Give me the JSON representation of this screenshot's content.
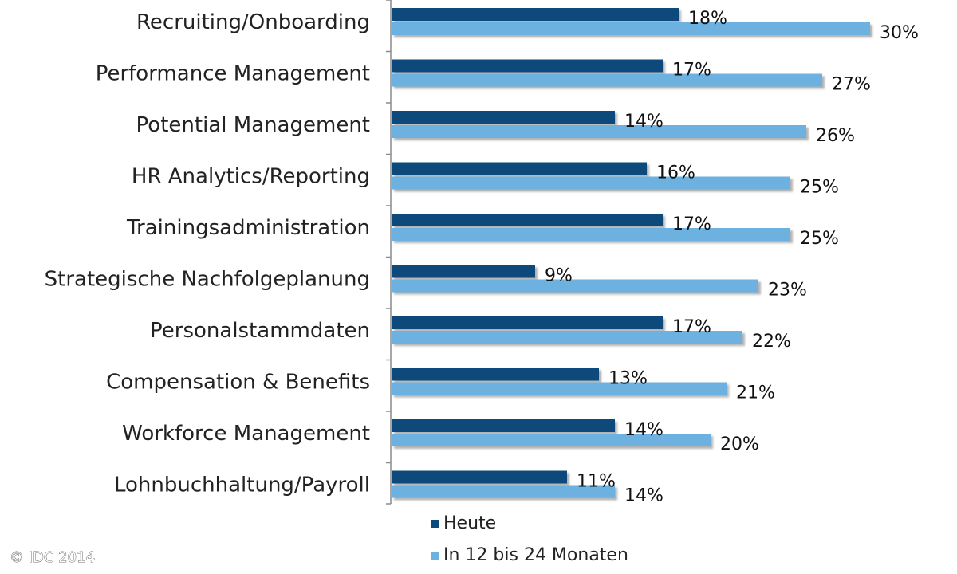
{
  "chart_data": {
    "type": "bar",
    "orientation": "horizontal",
    "categories": [
      "Recruiting/Onboarding",
      "Performance Management",
      "Potential Management",
      "HR Analytics/Reporting",
      "Trainingsadministration",
      "Strategische Nachfolgeplanung",
      "Personalstammdaten",
      "Compensation & Benefits",
      "Workforce Management",
      "Lohnbuchhaltung/Payroll"
    ],
    "series": [
      {
        "name": "Heute",
        "color": "#0d4a7a",
        "values": [
          18,
          17,
          14,
          16,
          17,
          9,
          17,
          13,
          14,
          11
        ],
        "labels": [
          "18%",
          "17%",
          "14%",
          "16%",
          "17%",
          "9%",
          "17%",
          "13%",
          "14%",
          "11%"
        ]
      },
      {
        "name": "In 12 bis 24 Monaten",
        "color": "#6cb1df",
        "values": [
          30,
          27,
          26,
          25,
          25,
          23,
          22,
          21,
          20,
          14
        ],
        "labels": [
          "30%",
          "27%",
          "26%",
          "25%",
          "25%",
          "23%",
          "22%",
          "21%",
          "20%",
          "14%"
        ]
      }
    ],
    "value_format": "percent",
    "grid": false,
    "legend_position": "bottom"
  },
  "copyright": "© IDC 2014"
}
